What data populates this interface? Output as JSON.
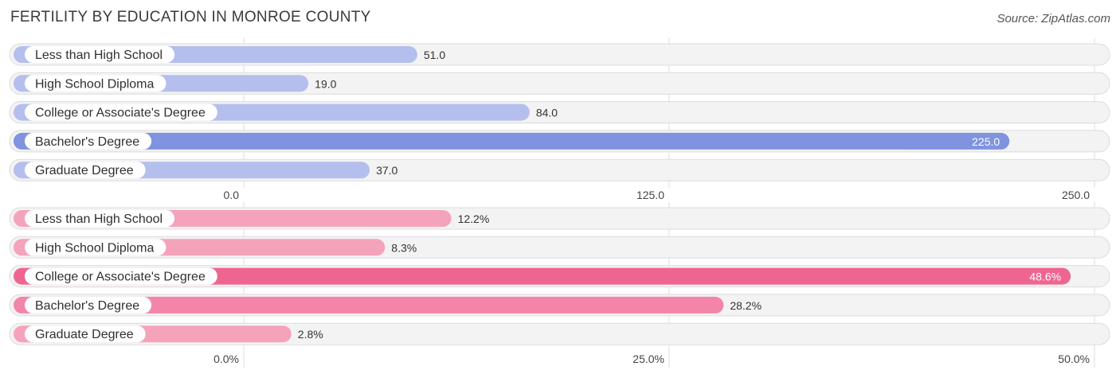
{
  "title": "FERTILITY BY EDUCATION IN MONROE COUNTY",
  "source": "Source: ZipAtlas.com",
  "chart_data": [
    {
      "type": "bar",
      "orientation": "horizontal",
      "categories": [
        "Less than High School",
        "High School Diploma",
        "College or Associate's Degree",
        "Bachelor's Degree",
        "Graduate Degree"
      ],
      "values": [
        51.0,
        19.0,
        84.0,
        225.0,
        37.0
      ],
      "value_labels": [
        "51.0",
        "19.0",
        "84.0",
        "225.0",
        "37.0"
      ],
      "xlim": [
        0,
        250
      ],
      "ticks": [
        "0.0",
        "125.0",
        "250.0"
      ],
      "tick_values": [
        0,
        125,
        250
      ],
      "colors": {
        "bar": "#b4bfed",
        "highlight": "#7f93df"
      },
      "grid": true
    },
    {
      "type": "bar",
      "orientation": "horizontal",
      "categories": [
        "Less than High School",
        "High School Diploma",
        "College or Associate's Degree",
        "Bachelor's Degree",
        "Graduate Degree"
      ],
      "values": [
        12.2,
        8.3,
        48.6,
        28.2,
        2.8
      ],
      "value_labels": [
        "12.2%",
        "8.3%",
        "48.6%",
        "28.2%",
        "2.8%"
      ],
      "xlim": [
        0,
        50
      ],
      "ticks": [
        "0.0%",
        "25.0%",
        "50.0%"
      ],
      "tick_values": [
        0,
        25,
        50
      ],
      "colors": {
        "bar": "#f4a3bb",
        "highlight": "#ee6690",
        "mid": "#f285a8"
      },
      "grid": true
    }
  ]
}
